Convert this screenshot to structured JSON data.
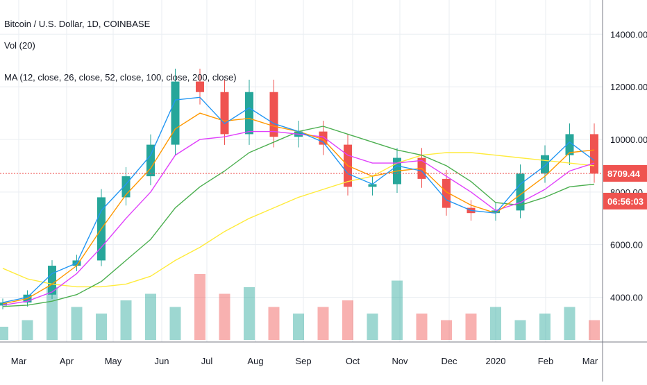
{
  "legend": {
    "title": "Bitcoin / U.S. Dollar, 1D, COINBASE",
    "vol": "Vol (20)",
    "ma": "MA (12, close, 26, close, 52, close, 100, close, 200, close)"
  },
  "price_tag": {
    "price": "8709.44",
    "countdown": "06:56:03"
  },
  "colors": {
    "up": "#26a69a",
    "down": "#ef5350",
    "ma12": "#2196f3",
    "ma26": "#ff9800",
    "ma52": "#e040fb",
    "ma100": "#4caf50",
    "ma200": "#ffeb3b",
    "price_line": "#ef5350",
    "grid": "#e9edf2"
  },
  "chart_data": {
    "type": "line",
    "y_ticks": [
      "4000.00",
      "6000.00",
      "8000.00",
      "10000.00",
      "12000.00",
      "14000.00"
    ],
    "y_tick_values": [
      4000,
      6000,
      8000,
      10000,
      12000,
      14000
    ],
    "x_ticks": [
      "Mar",
      "Apr",
      "May",
      "Jun",
      "Jul",
      "Aug",
      "Sep",
      "Oct",
      "Nov",
      "Dec",
      "2020",
      "Feb",
      "Mar"
    ],
    "ylim": [
      2300,
      15300
    ],
    "current_price": 8709.44,
    "close_by_month": [
      [
        "Mar",
        3800
      ],
      [
        "Apr",
        4100
      ],
      [
        "Apr",
        5200
      ],
      [
        "May",
        5400
      ],
      [
        "May",
        7800
      ],
      [
        "Jun",
        8600
      ],
      [
        "Jun",
        9800
      ],
      [
        "Jun",
        12200
      ],
      [
        "Jul",
        11800
      ],
      [
        "Jul",
        10200
      ],
      [
        "Aug",
        11800
      ],
      [
        "Aug",
        10100
      ],
      [
        "Sep",
        10300
      ],
      [
        "Sep",
        9800
      ],
      [
        "Oct",
        8200
      ],
      [
        "Oct",
        8300
      ],
      [
        "Nov",
        9300
      ],
      [
        "Nov",
        8500
      ],
      [
        "Dec",
        7400
      ],
      [
        "Dec",
        7200
      ],
      [
        "2020",
        7300
      ],
      [
        "2020",
        8700
      ],
      [
        "Feb",
        9400
      ],
      [
        "Feb",
        10200
      ],
      [
        "Mar",
        8700
      ]
    ],
    "series": [
      {
        "name": "MA 12",
        "values": [
          3800,
          4000,
          4900,
          5300,
          7300,
          8300,
          9400,
          11500,
          11600,
          10600,
          11200,
          10600,
          10300,
          9900,
          8700,
          8300,
          9000,
          8800,
          7700,
          7300,
          7200,
          8300,
          9000,
          9900,
          9200
        ]
      },
      {
        "name": "MA 26",
        "values": [
          3750,
          3950,
          4500,
          5200,
          6600,
          7900,
          8900,
          10400,
          11000,
          10700,
          10800,
          10500,
          10300,
          10000,
          9000,
          8600,
          8800,
          8900,
          8000,
          7500,
          7200,
          7900,
          8600,
          9500,
          9600
        ]
      },
      {
        "name": "MA 52",
        "values": [
          3700,
          3850,
          4200,
          4900,
          5900,
          7000,
          8000,
          9400,
          10000,
          10100,
          10300,
          10300,
          10200,
          10100,
          9400,
          9100,
          9100,
          9200,
          8600,
          8000,
          7300,
          7600,
          8100,
          8800,
          9100
        ]
      },
      {
        "name": "MA 100",
        "values": [
          3650,
          3700,
          3850,
          4100,
          4600,
          5400,
          6200,
          7400,
          8200,
          8800,
          9500,
          9900,
          10300,
          10500,
          10200,
          9900,
          9600,
          9400,
          9000,
          8400,
          7600,
          7500,
          7800,
          8200,
          8300
        ]
      },
      {
        "name": "MA 200",
        "values": [
          5100,
          4700,
          4500,
          4400,
          4400,
          4500,
          4800,
          5400,
          5900,
          6500,
          7000,
          7400,
          7800,
          8100,
          8400,
          8600,
          9100,
          9400,
          9500,
          9500,
          9400,
          9300,
          9200,
          9100,
          9000
        ]
      }
    ],
    "volume_relative": [
      0.2,
      0.3,
      0.8,
      0.5,
      0.4,
      0.6,
      0.7,
      0.5,
      1.0,
      0.7,
      0.8,
      0.5,
      0.4,
      0.5,
      0.6,
      0.4,
      0.9,
      0.4,
      0.3,
      0.4,
      0.5,
      0.3,
      0.4,
      0.5,
      0.3
    ]
  }
}
